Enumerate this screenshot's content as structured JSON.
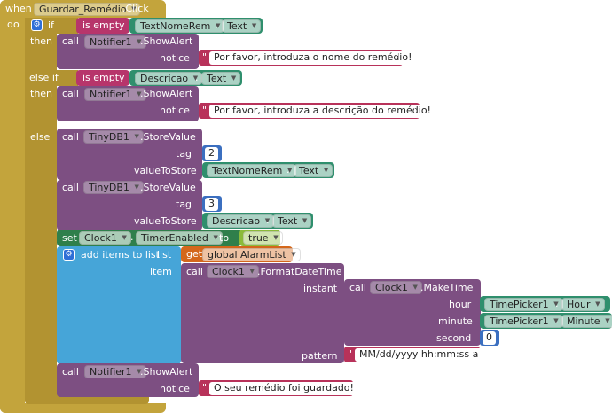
{
  "event": {
    "when_label": "when",
    "component": "Guardar_Remédio",
    "event_name": ".Click",
    "do_label": "do"
  },
  "if_block": {
    "if_label": "if",
    "elseif_label": "else if",
    "then_label": "then",
    "else_label": "else"
  },
  "cond1": {
    "is_empty": "is empty",
    "component": "TextNomeRem",
    "property": "Text"
  },
  "alert1": {
    "call": "call",
    "component": "Notifier1",
    "method": ".ShowAlert",
    "param": "notice",
    "text": "Por favor, introduza o nome do remédio!"
  },
  "cond2": {
    "is_empty": "is empty",
    "component": "Descricao",
    "property": "Text"
  },
  "alert2": {
    "call": "call",
    "component": "Notifier1",
    "method": ".ShowAlert",
    "param": "notice",
    "text": "Por favor, introduza a descrição do remédio!"
  },
  "store1": {
    "call": "call",
    "component": "TinyDB1",
    "method": ".StoreValue",
    "tag_label": "tag",
    "tag": "2",
    "value_label": "valueToStore",
    "value_component": "TextNomeRem",
    "value_property": "Text"
  },
  "store2": {
    "call": "call",
    "component": "TinyDB1",
    "method": ".StoreValue",
    "tag_label": "tag",
    "tag": "3",
    "value_label": "valueToStore",
    "value_component": "Descricao",
    "value_property": "Text"
  },
  "set_timer": {
    "set": "set",
    "component": "Clock1",
    "property": "TimerEnabled",
    "to": "to",
    "value": "true"
  },
  "add_items": {
    "label": "add items to list",
    "list_label": "list",
    "item_label": "item",
    "get": "get",
    "variable": "global AlarmList"
  },
  "format_dt": {
    "call": "call",
    "component": "Clock1",
    "method": ".FormatDateTime",
    "instant_label": "instant",
    "pattern_label": "pattern",
    "pattern": "MM/dd/yyyy hh:mm:ss a"
  },
  "make_time": {
    "call": "call",
    "component": "Clock1",
    "method": ".MakeTime",
    "hour_label": "hour",
    "hour_component": "TimePicker1",
    "hour_property": "Hour",
    "minute_label": "minute",
    "minute_component": "TimePicker1",
    "minute_property": "Minute",
    "second_label": "second",
    "second": "0"
  },
  "alert3": {
    "call": "call",
    "component": "Notifier1",
    "method": ".ShowAlert",
    "param": "notice",
    "text": "O seu remédio foi guardado!"
  },
  "icons": {
    "mutator": "gear-icon",
    "dropdown": "dropdown-arrow-icon"
  },
  "colors": {
    "control": "#c3a43c",
    "procedure": "#7d4f82",
    "component_getter": "#2f8f6d",
    "text": "#b8325a",
    "math": "#3b6fc0",
    "list": "#46a5d8",
    "variable": "#d4671b",
    "logic": "#8bbb3a",
    "setter": "#2f7f4b"
  }
}
